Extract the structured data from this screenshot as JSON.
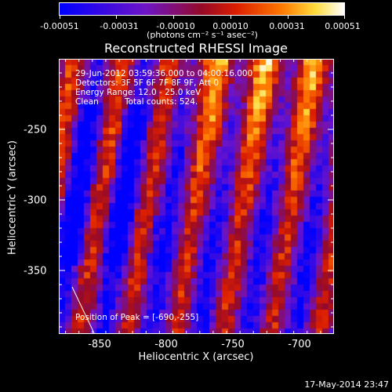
{
  "colorbar": {
    "ticks": [
      "-0.00051",
      "-0.00031",
      "-0.00010",
      "0.00010",
      "0.00031",
      "0.00051"
    ],
    "unit": "(photons cm⁻² s⁻¹ asec⁻²)",
    "colors": [
      "#0000ff",
      "#7a00c8",
      "#c01000",
      "#ff7a00",
      "#ffffc0",
      "#ffffff"
    ]
  },
  "chart_data": {
    "type": "heatmap",
    "title": "Reconstructed RHESSI Image",
    "xlabel": "Heliocentric X (arcsec)",
    "ylabel": "Heliocentric Y (arcsec)",
    "x_ticks": [
      "-850",
      "-800",
      "-750",
      "-700"
    ],
    "y_ticks": [
      "-250",
      "-300",
      "-350"
    ],
    "xlim": [
      -880,
      -675
    ],
    "ylim": [
      -395,
      -200
    ],
    "annotations": {
      "time": "29-Jun-2012 03:59:36.000 to 04:00:16.000",
      "detectors": "Detectors: 3F 5F 6F 7F 8F 9F, Att 0",
      "energy": "Energy Range: 12.0 - 25.0 keV",
      "clean": "Clean",
      "counts": "Total counts: 524.",
      "peak": "Position of Peak = [-690,-255]"
    },
    "peak": [
      -690,
      -255
    ]
  },
  "timestamp": "17-May-2014 23:47"
}
